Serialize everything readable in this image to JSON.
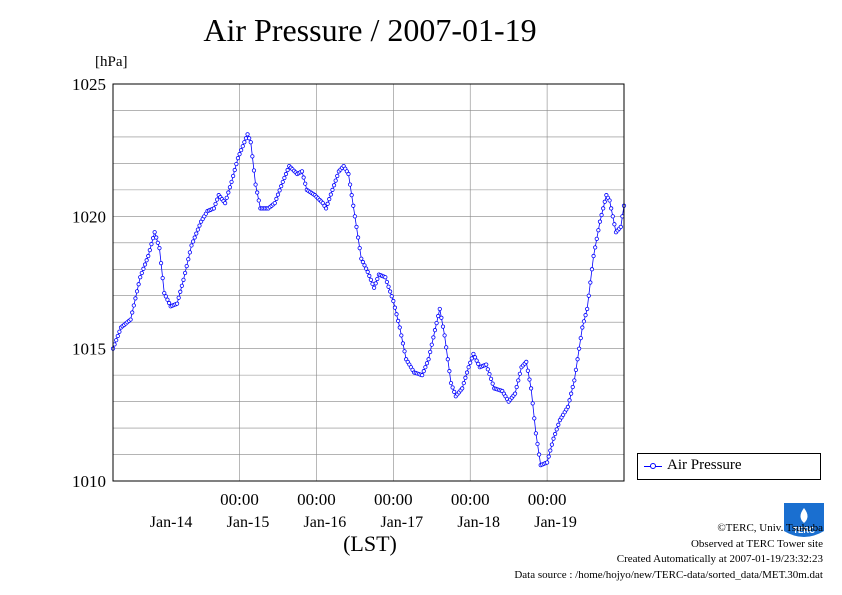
{
  "title": "Air Pressure / 2007-01-19",
  "unit_label": "[hPa]",
  "xlabel": "(LST)",
  "legend": {
    "label": "Air Pressure"
  },
  "credits": {
    "copyright": "©TERC, Univ. Tsukuba",
    "observed": "Observed at TERC Tower site",
    "created": "Created Automatically at 2007-01-19/23:32:23",
    "source": "Data source : /home/hojyo/new/TERC-data/sorted_data/MET.30m.dat"
  },
  "logo": {
    "text": "TERC"
  },
  "colors": {
    "series": "#0000ff",
    "grid": "#888888",
    "logo": "#1a6fd0"
  },
  "chart_data": {
    "type": "line",
    "title": "Air Pressure / 2007-01-19",
    "ylabel": "[hPa]",
    "xlabel": "(LST)",
    "ylim": [
      1010,
      1025
    ],
    "xlim": [
      "2007-01-13T08:30",
      "2007-01-20T00:00"
    ],
    "y_ticks": [
      1010,
      1015,
      1020,
      1025
    ],
    "x_ticks": [
      {
        "t": "2007-01-15T00:00",
        "time": "00:00",
        "date": "Jan-15"
      },
      {
        "t": "2007-01-16T00:00",
        "time": "00:00",
        "date": "Jan-16"
      },
      {
        "t": "2007-01-17T00:00",
        "time": "00:00",
        "date": "Jan-17"
      },
      {
        "t": "2007-01-18T00:00",
        "time": "00:00",
        "date": "Jan-18"
      },
      {
        "t": "2007-01-19T00:00",
        "time": "00:00",
        "date": "Jan-19"
      }
    ],
    "day_labels": [
      {
        "t": "2007-01-14T12:00",
        "text": "Jan-14"
      },
      {
        "t": "2007-01-15T12:00",
        "text": "Jan-15"
      },
      {
        "t": "2007-01-16T12:00",
        "text": "Jan-16"
      },
      {
        "t": "2007-01-17T12:00",
        "text": "Jan-17"
      },
      {
        "t": "2007-01-18T12:00",
        "text": "Jan-18"
      },
      {
        "t": "2007-01-19T12:00",
        "text": "Jan-19"
      }
    ],
    "grid": true,
    "legend_position": "outside-right-bottom",
    "series": [
      {
        "name": "Air Pressure",
        "interval": "30min",
        "points": [
          [
            "2007-01-13T08:30",
            1015.0
          ],
          [
            "2007-01-13T11:00",
            1015.8
          ],
          [
            "2007-01-13T14:00",
            1016.1
          ],
          [
            "2007-01-13T17:00",
            1017.7
          ],
          [
            "2007-01-13T19:30",
            1018.5
          ],
          [
            "2007-01-13T21:30",
            1019.4
          ],
          [
            "2007-01-13T23:00",
            1018.8
          ],
          [
            "2007-01-14T00:30",
            1017.1
          ],
          [
            "2007-01-14T02:30",
            1016.6
          ],
          [
            "2007-01-14T04:30",
            1016.7
          ],
          [
            "2007-01-14T06:30",
            1017.6
          ],
          [
            "2007-01-14T09:00",
            1018.9
          ],
          [
            "2007-01-14T12:00",
            1019.8
          ],
          [
            "2007-01-14T14:00",
            1020.2
          ],
          [
            "2007-01-14T16:00",
            1020.3
          ],
          [
            "2007-01-14T17:30",
            1020.8
          ],
          [
            "2007-01-14T19:30",
            1020.5
          ],
          [
            "2007-01-14T21:30",
            1021.3
          ],
          [
            "2007-01-14T23:30",
            1022.2
          ],
          [
            "2007-01-15T01:30",
            1022.8
          ],
          [
            "2007-01-15T02:30",
            1023.1
          ],
          [
            "2007-01-15T03:30",
            1022.8
          ],
          [
            "2007-01-15T05:00",
            1021.2
          ],
          [
            "2007-01-15T06:30",
            1020.3
          ],
          [
            "2007-01-15T09:00",
            1020.3
          ],
          [
            "2007-01-15T11:00",
            1020.5
          ],
          [
            "2007-01-15T13:30",
            1021.3
          ],
          [
            "2007-01-15T15:30",
            1021.9
          ],
          [
            "2007-01-15T18:00",
            1021.6
          ],
          [
            "2007-01-15T19:30",
            1021.7
          ],
          [
            "2007-01-15T21:00",
            1021.0
          ],
          [
            "2007-01-15T23:30",
            1020.8
          ],
          [
            "2007-01-16T02:00",
            1020.5
          ],
          [
            "2007-01-16T03:00",
            1020.3
          ],
          [
            "2007-01-16T05:00",
            1021.0
          ],
          [
            "2007-01-16T07:00",
            1021.7
          ],
          [
            "2007-01-16T08:30",
            1021.9
          ],
          [
            "2007-01-16T10:00",
            1021.6
          ],
          [
            "2007-01-16T12:00",
            1020.0
          ],
          [
            "2007-01-16T14:00",
            1018.4
          ],
          [
            "2007-01-16T16:00",
            1017.9
          ],
          [
            "2007-01-16T18:00",
            1017.3
          ],
          [
            "2007-01-16T19:30",
            1017.8
          ],
          [
            "2007-01-16T21:30",
            1017.7
          ],
          [
            "2007-01-17T00:00",
            1016.8
          ],
          [
            "2007-01-17T02:00",
            1015.8
          ],
          [
            "2007-01-17T04:00",
            1014.6
          ],
          [
            "2007-01-17T06:30",
            1014.1
          ],
          [
            "2007-01-17T09:00",
            1014.0
          ],
          [
            "2007-01-17T11:00",
            1014.6
          ],
          [
            "2007-01-17T13:00",
            1015.7
          ],
          [
            "2007-01-17T14:30",
            1016.5
          ],
          [
            "2007-01-17T16:00",
            1015.5
          ],
          [
            "2007-01-17T18:00",
            1013.7
          ],
          [
            "2007-01-17T19:30",
            1013.2
          ],
          [
            "2007-01-17T21:30",
            1013.5
          ],
          [
            "2007-01-17T23:30",
            1014.3
          ],
          [
            "2007-01-18T01:00",
            1014.8
          ],
          [
            "2007-01-18T03:00",
            1014.3
          ],
          [
            "2007-01-18T05:00",
            1014.4
          ],
          [
            "2007-01-18T07:30",
            1013.5
          ],
          [
            "2007-01-18T10:00",
            1013.4
          ],
          [
            "2007-01-18T12:00",
            1013.0
          ],
          [
            "2007-01-18T14:00",
            1013.3
          ],
          [
            "2007-01-18T16:00",
            1014.3
          ],
          [
            "2007-01-18T17:30",
            1014.5
          ],
          [
            "2007-01-18T19:00",
            1013.5
          ],
          [
            "2007-01-18T20:30",
            1011.8
          ],
          [
            "2007-01-18T22:00",
            1010.6
          ],
          [
            "2007-01-19T00:00",
            1010.7
          ],
          [
            "2007-01-19T02:00",
            1011.6
          ],
          [
            "2007-01-19T04:00",
            1012.3
          ],
          [
            "2007-01-19T06:30",
            1012.8
          ],
          [
            "2007-01-19T08:30",
            1013.8
          ],
          [
            "2007-01-19T11:00",
            1015.8
          ],
          [
            "2007-01-19T12:30",
            1016.5
          ],
          [
            "2007-01-19T14:30",
            1018.5
          ],
          [
            "2007-01-19T16:30",
            1019.8
          ],
          [
            "2007-01-19T18:30",
            1020.8
          ],
          [
            "2007-01-19T19:30",
            1020.6
          ],
          [
            "2007-01-19T21:30",
            1019.4
          ],
          [
            "2007-01-19T23:00",
            1019.6
          ],
          [
            "2007-01-20T00:00",
            1020.4
          ]
        ]
      }
    ]
  }
}
